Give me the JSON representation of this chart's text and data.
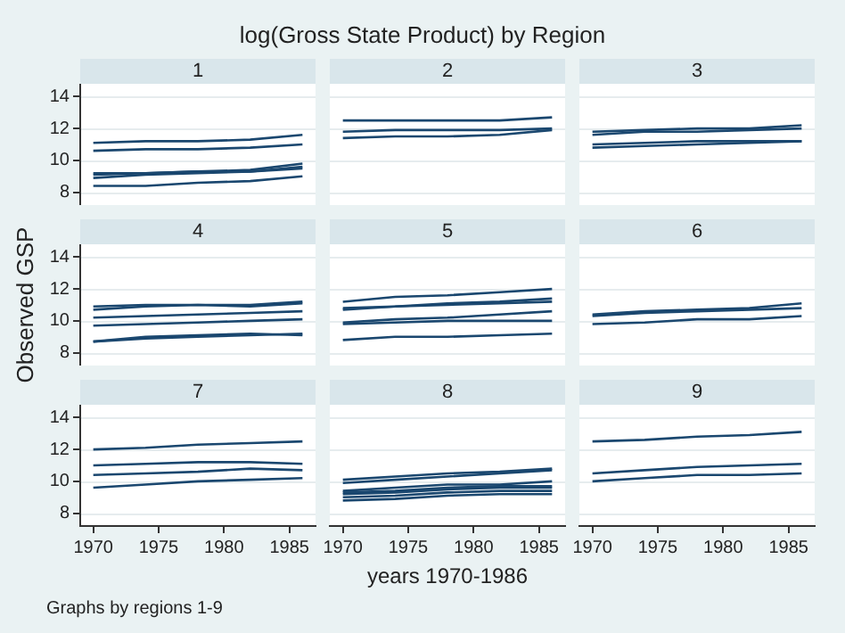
{
  "chart_data": [
    {
      "type": "other",
      "title": "log(Gross State Product) by Region"
    },
    {
      "type": "line",
      "title": "1",
      "x": [
        1970,
        1974,
        1978,
        1982,
        1986
      ],
      "xlim": [
        1969,
        1987
      ],
      "xticks": [
        1970,
        1975,
        1980,
        1985
      ],
      "ylim": [
        7.2,
        14.8
      ],
      "yticks": [
        8,
        10,
        12,
        14
      ],
      "grid": "y",
      "marker": "none",
      "tick_labels": "y",
      "series": [
        {
          "color": "#1a476f",
          "values": [
            11.1,
            11.2,
            11.2,
            11.3,
            11.6
          ]
        },
        {
          "color": "#1a476f",
          "values": [
            10.6,
            10.7,
            10.7,
            10.8,
            11.0
          ]
        },
        {
          "color": "#1a476f",
          "values": [
            9.2,
            9.2,
            9.3,
            9.4,
            9.8
          ]
        },
        {
          "color": "#1a476f",
          "values": [
            9.1,
            9.2,
            9.3,
            9.3,
            9.6
          ]
        },
        {
          "color": "#1a476f",
          "values": [
            8.9,
            9.1,
            9.2,
            9.3,
            9.5
          ]
        },
        {
          "color": "#1a476f",
          "values": [
            8.4,
            8.4,
            8.6,
            8.7,
            9.0
          ]
        }
      ]
    },
    {
      "type": "line",
      "title": "2",
      "x": [
        1970,
        1974,
        1978,
        1982,
        1986
      ],
      "xlim": [
        1969,
        1987
      ],
      "xticks": [
        1970,
        1975,
        1980,
        1985
      ],
      "ylim": [
        7.2,
        14.8
      ],
      "yticks": [
        8,
        10,
        12,
        14
      ],
      "grid": "y",
      "marker": "none",
      "tick_labels": false,
      "series": [
        {
          "color": "#1a476f",
          "values": [
            12.5,
            12.5,
            12.5,
            12.5,
            12.7
          ]
        },
        {
          "color": "#1a476f",
          "values": [
            11.8,
            11.9,
            11.9,
            11.9,
            12.0
          ]
        },
        {
          "color": "#1a476f",
          "values": [
            11.4,
            11.5,
            11.5,
            11.6,
            11.9
          ]
        }
      ]
    },
    {
      "type": "line",
      "title": "3",
      "x": [
        1970,
        1974,
        1978,
        1982,
        1986
      ],
      "xlim": [
        1969,
        1987
      ],
      "xticks": [
        1970,
        1975,
        1980,
        1985
      ],
      "ylim": [
        7.2,
        14.8
      ],
      "yticks": [
        8,
        10,
        12,
        14
      ],
      "grid": "y",
      "marker": "none",
      "tick_labels": false,
      "series": [
        {
          "color": "#1a476f",
          "values": [
            11.8,
            11.9,
            12.0,
            12.0,
            12.2
          ]
        },
        {
          "color": "#1a476f",
          "values": [
            11.6,
            11.8,
            11.8,
            11.9,
            12.0
          ]
        },
        {
          "color": "#1a476f",
          "values": [
            11.0,
            11.1,
            11.2,
            11.2,
            11.2
          ]
        },
        {
          "color": "#1a476f",
          "values": [
            10.8,
            10.9,
            11.0,
            11.1,
            11.2
          ]
        }
      ]
    },
    {
      "type": "line",
      "title": "4",
      "ylabel": "Observed GSP",
      "x": [
        1970,
        1974,
        1978,
        1982,
        1986
      ],
      "xlim": [
        1969,
        1987
      ],
      "xticks": [
        1970,
        1975,
        1980,
        1985
      ],
      "ylim": [
        7.2,
        14.8
      ],
      "yticks": [
        8,
        10,
        12,
        14
      ],
      "grid": "y",
      "marker": "none",
      "tick_labels": "y",
      "series": [
        {
          "color": "#1a476f",
          "values": [
            10.9,
            11.0,
            11.0,
            11.0,
            11.2
          ]
        },
        {
          "color": "#1a476f",
          "values": [
            10.7,
            10.9,
            11.0,
            10.9,
            11.1
          ]
        },
        {
          "color": "#1a476f",
          "values": [
            10.2,
            10.3,
            10.4,
            10.5,
            10.6
          ]
        },
        {
          "color": "#1a476f",
          "values": [
            9.7,
            9.8,
            9.9,
            10.0,
            10.1
          ]
        },
        {
          "color": "#1a476f",
          "values": [
            8.7,
            8.9,
            9.0,
            9.1,
            9.2
          ]
        },
        {
          "color": "#1a476f",
          "values": [
            8.7,
            9.0,
            9.1,
            9.2,
            9.1
          ]
        }
      ]
    },
    {
      "type": "line",
      "title": "5",
      "x": [
        1970,
        1974,
        1978,
        1982,
        1986
      ],
      "xlim": [
        1969,
        1987
      ],
      "xticks": [
        1970,
        1975,
        1980,
        1985
      ],
      "ylim": [
        7.2,
        14.8
      ],
      "yticks": [
        8,
        10,
        12,
        14
      ],
      "grid": "y",
      "marker": "none",
      "tick_labels": false,
      "series": [
        {
          "color": "#1a476f",
          "values": [
            11.2,
            11.5,
            11.6,
            11.8,
            12.0
          ]
        },
        {
          "color": "#1a476f",
          "values": [
            10.8,
            10.9,
            11.1,
            11.2,
            11.4
          ]
        },
        {
          "color": "#1a476f",
          "values": [
            10.7,
            10.9,
            11.0,
            11.1,
            11.2
          ]
        },
        {
          "color": "#1a476f",
          "values": [
            9.9,
            10.1,
            10.2,
            10.4,
            10.6
          ]
        },
        {
          "color": "#1a476f",
          "values": [
            9.8,
            9.9,
            10.0,
            10.0,
            10.0
          ]
        },
        {
          "color": "#1a476f",
          "values": [
            8.8,
            9.0,
            9.0,
            9.1,
            9.2
          ]
        }
      ]
    },
    {
      "type": "line",
      "title": "6",
      "x": [
        1970,
        1974,
        1978,
        1982,
        1986
      ],
      "xlim": [
        1969,
        1987
      ],
      "xticks": [
        1970,
        1975,
        1980,
        1985
      ],
      "ylim": [
        7.2,
        14.8
      ],
      "yticks": [
        8,
        10,
        12,
        14
      ],
      "grid": "y",
      "marker": "none",
      "tick_labels": false,
      "series": [
        {
          "color": "#1a476f",
          "values": [
            10.4,
            10.6,
            10.7,
            10.8,
            11.1
          ]
        },
        {
          "color": "#1a476f",
          "values": [
            10.3,
            10.5,
            10.6,
            10.7,
            10.8
          ]
        },
        {
          "color": "#1a476f",
          "values": [
            9.8,
            9.9,
            10.1,
            10.1,
            10.3
          ]
        }
      ]
    },
    {
      "type": "line",
      "title": "7",
      "x": [
        1970,
        1974,
        1978,
        1982,
        1986
      ],
      "xlim": [
        1969,
        1987
      ],
      "xticks": [
        1970,
        1975,
        1980,
        1985
      ],
      "ylim": [
        7.2,
        14.8
      ],
      "yticks": [
        8,
        10,
        12,
        14
      ],
      "grid": "y",
      "marker": "none",
      "series": [
        {
          "color": "#1a476f",
          "values": [
            12.0,
            12.1,
            12.3,
            12.4,
            12.5
          ]
        },
        {
          "color": "#1a476f",
          "values": [
            11.0,
            11.1,
            11.2,
            11.2,
            11.1
          ]
        },
        {
          "color": "#1a476f",
          "values": [
            10.4,
            10.5,
            10.6,
            10.8,
            10.7
          ]
        },
        {
          "color": "#1a476f",
          "values": [
            9.6,
            9.8,
            10.0,
            10.1,
            10.2
          ]
        }
      ]
    },
    {
      "type": "line",
      "title": "8",
      "xlabel": "years 1970-1986",
      "x": [
        1970,
        1974,
        1978,
        1982,
        1986
      ],
      "xlim": [
        1969,
        1987
      ],
      "xticks": [
        1970,
        1975,
        1980,
        1985
      ],
      "ylim": [
        7.2,
        14.8
      ],
      "yticks": [
        8,
        10,
        12,
        14
      ],
      "grid": "y",
      "marker": "none",
      "tick_labels": "x",
      "series": [
        {
          "color": "#1a476f",
          "values": [
            10.1,
            10.3,
            10.5,
            10.6,
            10.8
          ]
        },
        {
          "color": "#1a476f",
          "values": [
            9.9,
            10.1,
            10.3,
            10.5,
            10.7
          ]
        },
        {
          "color": "#1a476f",
          "values": [
            9.4,
            9.6,
            9.8,
            9.8,
            10.0
          ]
        },
        {
          "color": "#1a476f",
          "values": [
            9.3,
            9.4,
            9.6,
            9.7,
            9.7
          ]
        },
        {
          "color": "#1a476f",
          "values": [
            9.2,
            9.3,
            9.5,
            9.6,
            9.6
          ]
        },
        {
          "color": "#1a476f",
          "values": [
            9.0,
            9.1,
            9.3,
            9.4,
            9.4
          ]
        },
        {
          "color": "#1a476f",
          "values": [
            8.8,
            8.9,
            9.1,
            9.2,
            9.2
          ]
        }
      ]
    },
    {
      "type": "line",
      "title": "9",
      "x": [
        1970,
        1974,
        1978,
        1982,
        1986
      ],
      "xlim": [
        1969,
        1987
      ],
      "xticks": [
        1970,
        1975,
        1980,
        1985
      ],
      "ylim": [
        7.2,
        14.8
      ],
      "yticks": [
        8,
        10,
        12,
        14
      ],
      "grid": "y",
      "marker": "none",
      "tick_labels": "x",
      "series": [
        {
          "color": "#1a476f",
          "values": [
            12.5,
            12.6,
            12.8,
            12.9,
            13.1
          ]
        },
        {
          "color": "#1a476f",
          "values": [
            10.5,
            10.7,
            10.9,
            11.0,
            11.1
          ]
        },
        {
          "color": "#1a476f",
          "values": [
            10.0,
            10.2,
            10.4,
            10.4,
            10.5
          ]
        }
      ]
    },
    {
      "type": "other",
      "annotations": [
        "Graphs by regions 1-9"
      ]
    }
  ]
}
